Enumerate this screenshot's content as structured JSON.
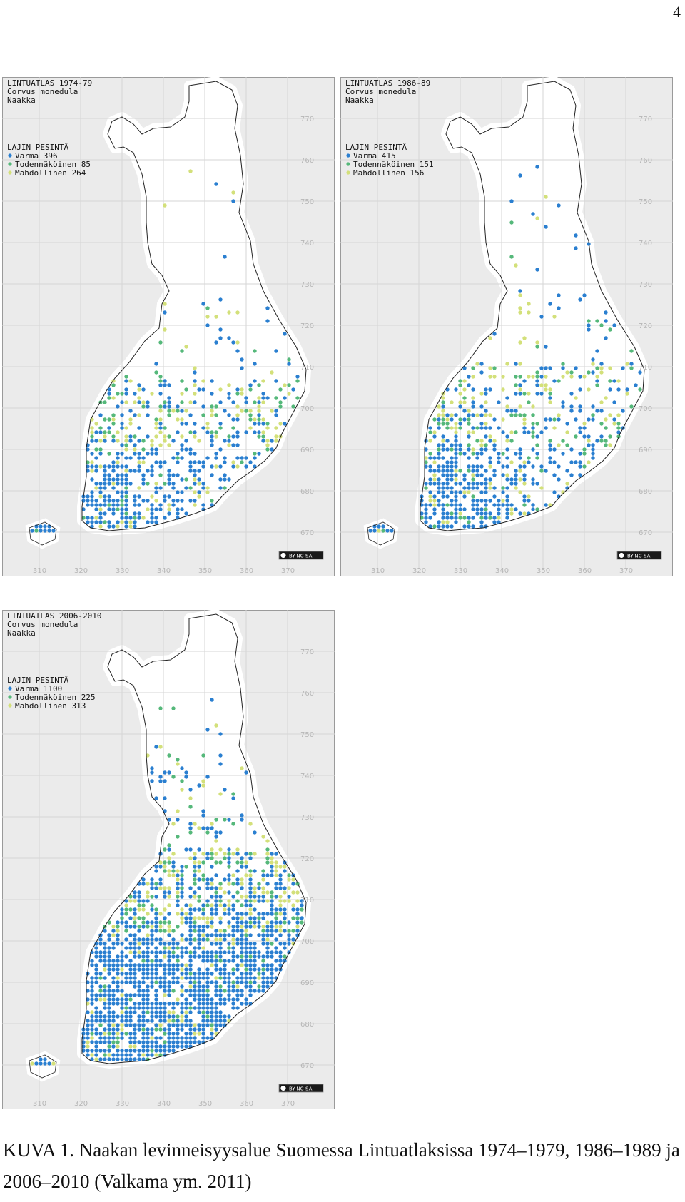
{
  "page_number": "4",
  "colors": {
    "background": "#ebebeb",
    "land": "#ffffff",
    "grid": "#d6d6d6",
    "coast": "#222222",
    "varma": "#2a7fd0",
    "todennakoinen": "#55b87a",
    "mahdollinen": "#d3e07a"
  },
  "axes": {
    "x_ticks": [
      "310",
      "320",
      "330",
      "340",
      "350",
      "360",
      "370"
    ],
    "y_ticks": [
      "770",
      "760",
      "750",
      "740",
      "730",
      "720",
      "710",
      "700",
      "690",
      "680",
      "670"
    ]
  },
  "cc_badge": "BY-NC-SA",
  "maps": [
    {
      "title": "LINTUATLAS 1974-79",
      "species_latin": "Corvus monedula",
      "species_name": "Naakka",
      "legend_title": "LAJIN PESINTÄ",
      "legend": [
        {
          "label": "Varma 396",
          "key": "varma",
          "count": 396
        },
        {
          "label": "Todennäköinen 85",
          "key": "todennakoinen",
          "count": 85
        },
        {
          "label": "Mahdollinen 264",
          "key": "mahdollinen",
          "count": 264
        }
      ]
    },
    {
      "title": "LINTUATLAS 1986-89",
      "species_latin": "Corvus monedula",
      "species_name": "Naakka",
      "legend_title": "LAJIN PESINTÄ",
      "legend": [
        {
          "label": "Varma 415",
          "key": "varma",
          "count": 415
        },
        {
          "label": "Todennäköinen 151",
          "key": "todennakoinen",
          "count": 151
        },
        {
          "label": "Mahdollinen 156",
          "key": "mahdollinen",
          "count": 156
        }
      ]
    },
    {
      "title": "LINTUATLAS 2006-2010",
      "species_latin": "Corvus monedula",
      "species_name": "Naakka",
      "legend_title": "LAJIN PESINTÄ",
      "legend": [
        {
          "label": "Varma 1100",
          "key": "varma",
          "count": 1100
        },
        {
          "label": "Todennäköinen 225",
          "key": "todennakoinen",
          "count": 225
        },
        {
          "label": "Mahdollinen 313",
          "key": "mahdollinen",
          "count": 313
        }
      ]
    }
  ],
  "caption": "KUVA 1. Naakan levinneisyysalue Suomessa Lintuatlaksissa 1974–1979, 1986–1989 ja 2006–2010 (Valkama ym. 2011)"
}
